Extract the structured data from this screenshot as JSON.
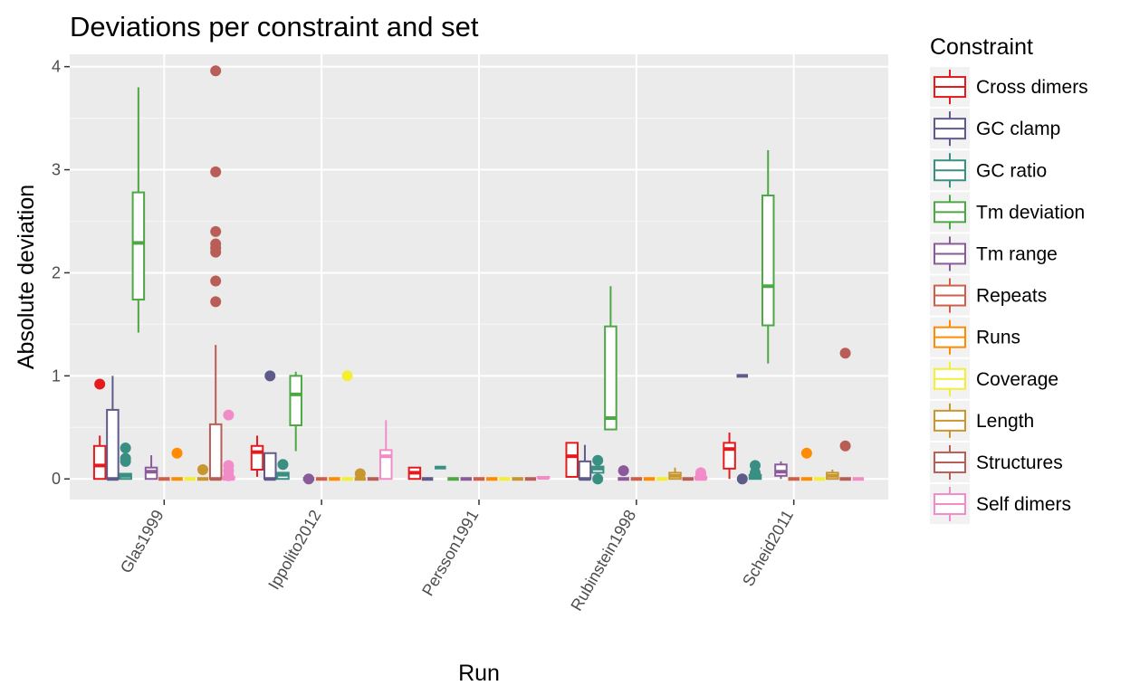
{
  "chart_data": {
    "type": "box",
    "title": "Deviations per constraint and set",
    "xlabel": "Run",
    "ylabel": "Absolute deviation",
    "ylim": [
      -0.2,
      4.12
    ],
    "yticks": [
      0,
      1,
      2,
      3,
      4
    ],
    "grid": true,
    "legend": {
      "title": "Constraint",
      "placement": "right"
    },
    "categories": [
      "Glas1999",
      "Ippolito2012",
      "Persson1991",
      "Rubinstein1998",
      "Scheid2011"
    ],
    "series": [
      {
        "name": "Cross dimers",
        "color": "#E41A1C",
        "boxes": [
          {
            "min": 0.0,
            "q1": 0.0,
            "median": 0.13,
            "q3": 0.32,
            "max": 0.42,
            "outliers": [
              0.92
            ]
          },
          {
            "min": 0.02,
            "q1": 0.09,
            "median": 0.26,
            "q3": 0.32,
            "max": 0.42,
            "outliers": []
          },
          {
            "min": 0.0,
            "q1": 0.0,
            "median": 0.06,
            "q3": 0.11,
            "max": 0.11,
            "outliers": []
          },
          {
            "min": 0.02,
            "q1": 0.02,
            "median": 0.22,
            "q3": 0.35,
            "max": 0.35,
            "outliers": []
          },
          {
            "min": 0.0,
            "q1": 0.1,
            "median": 0.29,
            "q3": 0.35,
            "max": 0.45,
            "outliers": []
          }
        ]
      },
      {
        "name": "GC clamp",
        "color": "#5E5A8A",
        "boxes": [
          {
            "min": 0.0,
            "q1": 0.0,
            "median": 0.0,
            "q3": 0.67,
            "max": 1.0,
            "outliers": []
          },
          {
            "min": 0.0,
            "q1": 0.0,
            "median": 0.0,
            "q3": 0.25,
            "max": 0.25,
            "outliers": [
              1.0
            ]
          },
          {
            "min": 0.0,
            "q1": 0.0,
            "median": 0.0,
            "q3": 0.0,
            "max": 0.0,
            "outliers": []
          },
          {
            "min": 0.0,
            "q1": 0.0,
            "median": 0.0,
            "q3": 0.17,
            "max": 0.33,
            "outliers": []
          },
          {
            "min": 1.0,
            "q1": 1.0,
            "median": 1.0,
            "q3": 1.0,
            "max": 1.0,
            "outliers": [
              0.0
            ]
          }
        ]
      },
      {
        "name": "GC ratio",
        "color": "#3A8F83",
        "boxes": [
          {
            "min": 0.0,
            "q1": 0.0,
            "median": 0.03,
            "q3": 0.05,
            "max": 0.05,
            "outliers": [
              0.3,
              0.2,
              0.17
            ]
          },
          {
            "min": 0.0,
            "q1": 0.0,
            "median": 0.04,
            "q3": 0.06,
            "max": 0.06,
            "outliers": [
              0.14
            ]
          },
          {
            "min": 0.11,
            "q1": 0.11,
            "median": 0.11,
            "q3": 0.11,
            "max": 0.11,
            "outliers": []
          },
          {
            "min": 0.06,
            "q1": 0.06,
            "median": 0.1,
            "q3": 0.12,
            "max": 0.12,
            "outliers": [
              0.18,
              0.0
            ]
          },
          {
            "min": 0.0,
            "q1": 0.0,
            "median": 0.02,
            "q3": 0.04,
            "max": 0.04,
            "outliers": [
              0.13,
              0.06
            ]
          }
        ]
      },
      {
        "name": "Tm deviation",
        "color": "#4DA745",
        "boxes": [
          {
            "min": 1.42,
            "q1": 1.74,
            "median": 2.29,
            "q3": 2.78,
            "max": 3.8,
            "outliers": []
          },
          {
            "min": 0.27,
            "q1": 0.52,
            "median": 0.82,
            "q3": 1.0,
            "max": 1.04,
            "outliers": []
          },
          {
            "min": 0.0,
            "q1": 0.0,
            "median": 0.0,
            "q3": 0.0,
            "max": 0.0,
            "outliers": []
          },
          {
            "min": 0.48,
            "q1": 0.48,
            "median": 0.59,
            "q3": 1.48,
            "max": 1.87,
            "outliers": []
          },
          {
            "min": 1.12,
            "q1": 1.49,
            "median": 1.87,
            "q3": 2.75,
            "max": 3.19,
            "outliers": []
          }
        ]
      },
      {
        "name": "Tm range",
        "color": "#8B5A9A",
        "boxes": [
          {
            "min": 0.0,
            "q1": 0.0,
            "median": 0.07,
            "q3": 0.11,
            "max": 0.23,
            "outliers": []
          },
          {
            "min": 0.0,
            "q1": 0.0,
            "median": 0.0,
            "q3": 0.0,
            "max": 0.0,
            "outliers": [
              0.0
            ]
          },
          {
            "min": 0.0,
            "q1": 0.0,
            "median": 0.0,
            "q3": 0.0,
            "max": 0.0,
            "outliers": []
          },
          {
            "min": 0.0,
            "q1": 0.0,
            "median": 0.0,
            "q3": 0.0,
            "max": 0.0,
            "outliers": [
              0.08
            ]
          },
          {
            "min": 0.0,
            "q1": 0.03,
            "median": 0.07,
            "q3": 0.14,
            "max": 0.17,
            "outliers": []
          }
        ]
      },
      {
        "name": "Repeats",
        "color": "#CE5F4B",
        "boxes": [
          {
            "min": 0.0,
            "q1": 0.0,
            "median": 0.0,
            "q3": 0.0,
            "max": 0.0,
            "outliers": []
          },
          {
            "min": 0.0,
            "q1": 0.0,
            "median": 0.0,
            "q3": 0.0,
            "max": 0.0,
            "outliers": []
          },
          {
            "min": 0.0,
            "q1": 0.0,
            "median": 0.0,
            "q3": 0.0,
            "max": 0.0,
            "outliers": []
          },
          {
            "min": 0.0,
            "q1": 0.0,
            "median": 0.0,
            "q3": 0.0,
            "max": 0.0,
            "outliers": []
          },
          {
            "min": 0.0,
            "q1": 0.0,
            "median": 0.0,
            "q3": 0.0,
            "max": 0.0,
            "outliers": []
          }
        ]
      },
      {
        "name": "Runs",
        "color": "#FF8C00",
        "boxes": [
          {
            "min": 0.0,
            "q1": 0.0,
            "median": 0.0,
            "q3": 0.0,
            "max": 0.0,
            "outliers": [
              0.25
            ]
          },
          {
            "min": 0.0,
            "q1": 0.0,
            "median": 0.0,
            "q3": 0.0,
            "max": 0.0,
            "outliers": []
          },
          {
            "min": 0.0,
            "q1": 0.0,
            "median": 0.0,
            "q3": 0.0,
            "max": 0.0,
            "outliers": []
          },
          {
            "min": 0.0,
            "q1": 0.0,
            "median": 0.0,
            "q3": 0.0,
            "max": 0.0,
            "outliers": []
          },
          {
            "min": 0.0,
            "q1": 0.0,
            "median": 0.0,
            "q3": 0.0,
            "max": 0.0,
            "outliers": [
              0.25
            ]
          }
        ]
      },
      {
        "name": "Coverage",
        "color": "#F2EF35",
        "boxes": [
          {
            "min": 0.0,
            "q1": 0.0,
            "median": 0.0,
            "q3": 0.0,
            "max": 0.0,
            "outliers": []
          },
          {
            "min": 0.0,
            "q1": 0.0,
            "median": 0.0,
            "q3": 0.0,
            "max": 0.0,
            "outliers": [
              1.0
            ]
          },
          {
            "min": 0.0,
            "q1": 0.0,
            "median": 0.0,
            "q3": 0.0,
            "max": 0.0,
            "outliers": []
          },
          {
            "min": 0.0,
            "q1": 0.0,
            "median": 0.0,
            "q3": 0.0,
            "max": 0.0,
            "outliers": []
          },
          {
            "min": 0.0,
            "q1": 0.0,
            "median": 0.0,
            "q3": 0.0,
            "max": 0.0,
            "outliers": []
          }
        ]
      },
      {
        "name": "Length",
        "color": "#C8962E",
        "boxes": [
          {
            "min": 0.0,
            "q1": 0.0,
            "median": 0.0,
            "q3": 0.0,
            "max": 0.0,
            "outliers": [
              0.09
            ]
          },
          {
            "min": 0.0,
            "q1": 0.0,
            "median": 0.0,
            "q3": 0.0,
            "max": 0.0,
            "outliers": [
              0.05
            ]
          },
          {
            "min": 0.0,
            "q1": 0.0,
            "median": 0.0,
            "q3": 0.0,
            "max": 0.0,
            "outliers": []
          },
          {
            "min": 0.0,
            "q1": 0.0,
            "median": 0.03,
            "q3": 0.06,
            "max": 0.11,
            "outliers": []
          },
          {
            "min": 0.0,
            "q1": 0.0,
            "median": 0.03,
            "q3": 0.06,
            "max": 0.09,
            "outliers": []
          }
        ]
      },
      {
        "name": "Structures",
        "color": "#B95E57",
        "boxes": [
          {
            "min": 0.0,
            "q1": 0.0,
            "median": 0.0,
            "q3": 0.53,
            "max": 1.3,
            "outliers": [
              3.96,
              2.98,
              2.4,
              2.28,
              2.24,
              2.2,
              1.92,
              1.72
            ]
          },
          {
            "min": 0.0,
            "q1": 0.0,
            "median": 0.0,
            "q3": 0.0,
            "max": 0.0,
            "outliers": []
          },
          {
            "min": 0.0,
            "q1": 0.0,
            "median": 0.0,
            "q3": 0.0,
            "max": 0.0,
            "outliers": []
          },
          {
            "min": 0.0,
            "q1": 0.0,
            "median": 0.0,
            "q3": 0.0,
            "max": 0.0,
            "outliers": []
          },
          {
            "min": 0.0,
            "q1": 0.0,
            "median": 0.0,
            "q3": 0.0,
            "max": 0.0,
            "outliers": [
              1.22,
              0.32
            ]
          }
        ]
      },
      {
        "name": "Self dimers",
        "color": "#F28CC8",
        "boxes": [
          {
            "min": 0.0,
            "q1": 0.0,
            "median": 0.0,
            "q3": 0.02,
            "max": 0.02,
            "outliers": [
              0.62,
              0.13,
              0.08,
              0.03
            ]
          },
          {
            "min": 0.0,
            "q1": 0.0,
            "median": 0.22,
            "q3": 0.28,
            "max": 0.57,
            "outliers": []
          },
          {
            "min": 0.01,
            "q1": 0.01,
            "median": 0.01,
            "q3": 0.02,
            "max": 0.02,
            "outliers": []
          },
          {
            "min": 0.0,
            "q1": 0.0,
            "median": 0.0,
            "q3": 0.02,
            "max": 0.02,
            "outliers": [
              0.06,
              0.04
            ]
          },
          {
            "min": 0.0,
            "q1": 0.0,
            "median": 0.0,
            "q3": 0.0,
            "max": 0.0,
            "outliers": []
          }
        ]
      }
    ]
  }
}
